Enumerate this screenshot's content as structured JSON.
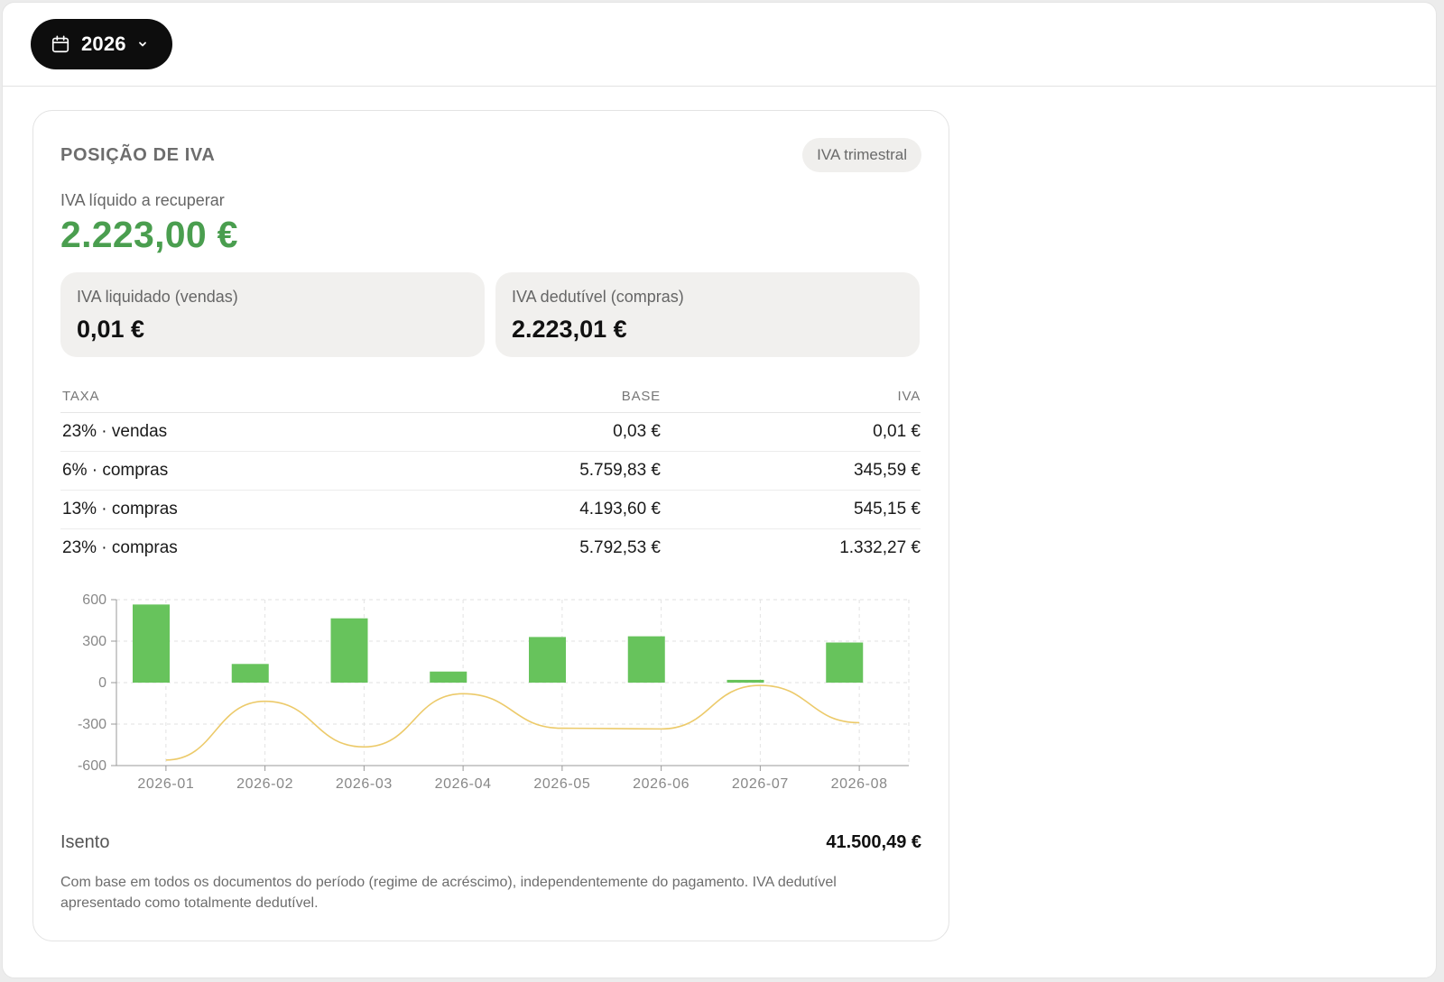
{
  "toolbar": {
    "year_label": "2026",
    "calendar_icon": "calendar-icon",
    "chevron_icon": "chevron-down-icon"
  },
  "card": {
    "title": "POSIÇÃO DE IVA",
    "badge": "IVA trimestral",
    "net_label": "IVA líquido a recuperar",
    "net_value": "2.223,00 €",
    "net_color": "#4a9e4f"
  },
  "stats": [
    {
      "label": "IVA liquidado (vendas)",
      "value": "0,01 €"
    },
    {
      "label": "IVA dedutível (compras)",
      "value": "2.223,01 €"
    }
  ],
  "rates_table": {
    "headers": [
      "TAXA",
      "BASE",
      "IVA"
    ],
    "rows": [
      [
        "23% · vendas",
        "0,03 €",
        "0,01 €"
      ],
      [
        "6% · compras",
        "5.759,83 €",
        "345,59 €"
      ],
      [
        "13% · compras",
        "4.193,60 €",
        "545,15 €"
      ],
      [
        "23% · compras",
        "5.792,53 €",
        "1.332,27 €"
      ]
    ]
  },
  "chart_data": {
    "type": "bar",
    "categories": [
      "2026-01",
      "2026-02",
      "2026-03",
      "2026-04",
      "2026-05",
      "2026-06",
      "2026-07",
      "2026-08"
    ],
    "series": [
      {
        "type": "bar",
        "color": "#67c35c",
        "values": [
          565,
          135,
          465,
          80,
          330,
          335,
          20,
          290
        ]
      },
      {
        "type": "line",
        "color": "#ecca6a",
        "values": [
          -560,
          -135,
          -465,
          -80,
          -330,
          -335,
          -20,
          -290
        ]
      }
    ],
    "ylim": [
      -600,
      600
    ],
    "yticks": [
      600,
      300,
      0,
      -300,
      -600
    ],
    "grid": true
  },
  "exempt": {
    "label": "Isento",
    "value": "41.500,49 €"
  },
  "footnote": "Com base em todos os documentos do período (regime de acréscimo), independentemente do pagamento. IVA dedutível apresentado como totalmente dedutível."
}
